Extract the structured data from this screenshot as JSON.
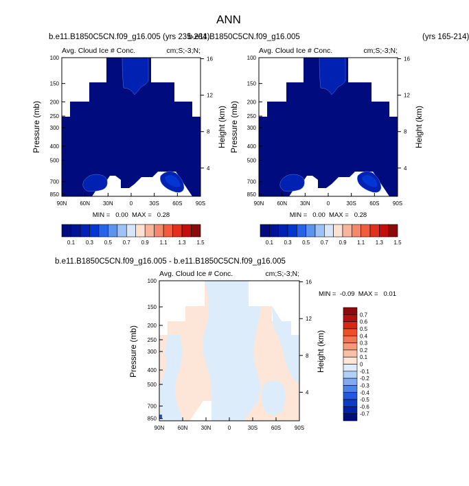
{
  "page": {
    "title": "ANN",
    "top_left_case": "b.e11.B1850C5CN.f09_g16.005 (yrs 235-284)",
    "top_right_case": "b.e11.B1850C5CN.f09_g16.005",
    "top_right_years": "(yrs 165-214)",
    "diff_title": "b.e11.B1850C5CN.f09_g16.005 - b.e11.B1850C5CN.f09_g16.005"
  },
  "colors": {
    "levels_main": [
      "#000c7d",
      "#001396",
      "#0021b1",
      "#0235d2",
      "#2663e8",
      "#5b93ee",
      "#9ec2f6",
      "#d6e6fb",
      "#fde2d4",
      "#f8b59b",
      "#f4886a",
      "#f15c3e",
      "#e1301b",
      "#c30e0b",
      "#8b0a0a"
    ],
    "levels_diff": [
      "#8b0a0a",
      "#b3110e",
      "#d42a14",
      "#ef4f28",
      "#f07551",
      "#f49a79",
      "#f8c0a6",
      "#fde6d7",
      "#dcecfb",
      "#b2d0f5",
      "#82aaf0",
      "#4e82ea",
      "#2458dc",
      "#0b3cc4",
      "#0021a8",
      "#000c7d"
    ]
  },
  "chart_data": [
    {
      "type": "heatmap",
      "panel": "case-a",
      "title": "Avg. Cloud Ice # Conc.",
      "units": "cm;S;-3;N;",
      "ylabel": "Pressure (mb)",
      "ylabel_right": "Height (km)",
      "x_ticks": [
        "90N",
        "60N",
        "30N",
        "0",
        "30S",
        "60S",
        "90S"
      ],
      "y_ticks": [
        "100",
        "150",
        "200",
        "250",
        "300",
        "400",
        "500",
        "700",
        "850"
      ],
      "y_right_ticks": [
        "16",
        "12",
        "8",
        "4"
      ],
      "stats": "MIN =   0.00  MAX =   0.28",
      "colorbar_labels": [
        "0.1",
        "0.3",
        "0.5",
        "0.7",
        "0.9",
        "1.1",
        "1.3",
        "1.5"
      ]
    },
    {
      "type": "heatmap",
      "panel": "case-b",
      "title": "Avg. Cloud Ice # Conc.",
      "units": "cm;S;-3;N;",
      "ylabel": "Pressure (mb)",
      "ylabel_right": "Height (km)",
      "x_ticks": [
        "90N",
        "60N",
        "30N",
        "0",
        "30S",
        "60S",
        "90S"
      ],
      "y_ticks": [
        "100",
        "150",
        "200",
        "250",
        "300",
        "400",
        "500",
        "700",
        "850"
      ],
      "y_right_ticks": [
        "16",
        "12",
        "8",
        "4"
      ],
      "stats": "MIN =   0.00  MAX =   0.28",
      "colorbar_labels": [
        "0.1",
        "0.3",
        "0.5",
        "0.7",
        "0.9",
        "1.1",
        "1.3",
        "1.5"
      ]
    },
    {
      "type": "heatmap",
      "panel": "difference",
      "title": "Avg. Cloud Ice # Conc.",
      "units": "cm;S;-3;N;",
      "ylabel": "Pressure (mb)",
      "ylabel_right": "Height (km)",
      "x_ticks": [
        "90N",
        "60N",
        "30N",
        "0",
        "30S",
        "60S",
        "90S"
      ],
      "y_ticks": [
        "100",
        "150",
        "200",
        "250",
        "300",
        "400",
        "500",
        "700",
        "850"
      ],
      "y_right_ticks": [
        "16",
        "12",
        "8",
        "4"
      ],
      "stats": "MIN =  -0.09  MAX =   0.01",
      "colorbar_labels": [
        "0.7",
        "0.6",
        "0.5",
        "0.4",
        "0.3",
        "0.2",
        "0.1",
        "0",
        "-0.1",
        "-0.2",
        "-0.3",
        "-0.4",
        "-0.5",
        "-0.6",
        "-0.7"
      ]
    }
  ]
}
